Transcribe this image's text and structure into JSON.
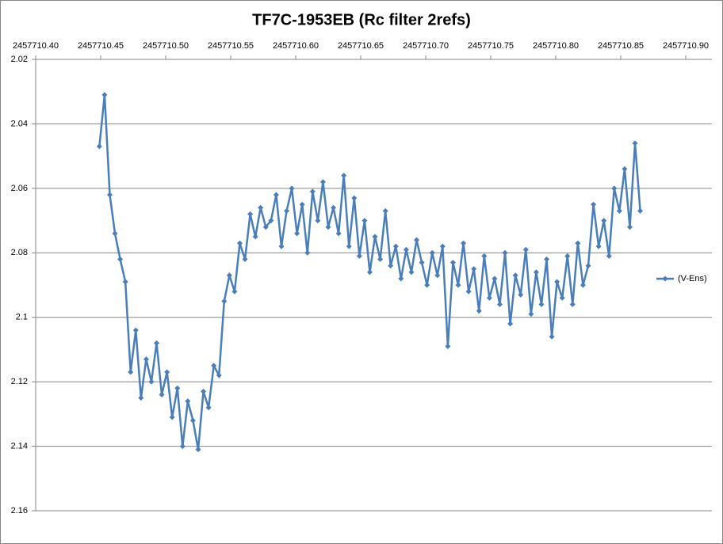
{
  "chart_data": {
    "type": "line",
    "title": "TF7C-1953EB (Rc filter 2refs)",
    "x": [
      2457710.449,
      2457710.453,
      2457710.457,
      2457710.461,
      2457710.465,
      2457710.469,
      2457710.473,
      2457710.477,
      2457710.481,
      2457710.485,
      2457710.489,
      2457710.493,
      2457710.497,
      2457710.501,
      2457710.505,
      2457710.509,
      2457710.513,
      2457710.517,
      2457710.521,
      2457710.525,
      2457710.529,
      2457710.533,
      2457710.537,
      2457710.541,
      2457710.545,
      2457710.549,
      2457710.553,
      2457710.557,
      2457710.561,
      2457710.565,
      2457710.569,
      2457710.573,
      2457710.577,
      2457710.581,
      2457710.585,
      2457710.589,
      2457710.593,
      2457710.597,
      2457710.601,
      2457710.605,
      2457710.609,
      2457710.613,
      2457710.617,
      2457710.621,
      2457710.625,
      2457710.629,
      2457710.633,
      2457710.637,
      2457710.641,
      2457710.645,
      2457710.649,
      2457710.653,
      2457710.657,
      2457710.661,
      2457710.665,
      2457710.669,
      2457710.673,
      2457710.677,
      2457710.681,
      2457710.685,
      2457710.689,
      2457710.693,
      2457710.697,
      2457710.701,
      2457710.705,
      2457710.709,
      2457710.713,
      2457710.717,
      2457710.721,
      2457710.725,
      2457710.729,
      2457710.733,
      2457710.737,
      2457710.741,
      2457710.745,
      2457710.749,
      2457710.753,
      2457710.757,
      2457710.761,
      2457710.765,
      2457710.769,
      2457710.773,
      2457710.777,
      2457710.781,
      2457710.785,
      2457710.789,
      2457710.793,
      2457710.797,
      2457710.801,
      2457710.805,
      2457710.809,
      2457710.813,
      2457710.817,
      2457710.821,
      2457710.825,
      2457710.829,
      2457710.833,
      2457710.837,
      2457710.841,
      2457710.845,
      2457710.849,
      2457710.853,
      2457710.857,
      2457710.861,
      2457710.865
    ],
    "series": [
      {
        "name": "(V-Ens)",
        "color": "#4a7ebb",
        "values": [
          2.047,
          2.031,
          2.062,
          2.074,
          2.082,
          2.089,
          2.117,
          2.104,
          2.125,
          2.113,
          2.12,
          2.108,
          2.124,
          2.117,
          2.131,
          2.122,
          2.14,
          2.126,
          2.132,
          2.141,
          2.123,
          2.128,
          2.115,
          2.118,
          2.095,
          2.087,
          2.092,
          2.077,
          2.082,
          2.068,
          2.075,
          2.066,
          2.072,
          2.07,
          2.062,
          2.078,
          2.067,
          2.06,
          2.074,
          2.065,
          2.08,
          2.061,
          2.07,
          2.058,
          2.072,
          2.066,
          2.074,
          2.056,
          2.078,
          2.063,
          2.081,
          2.07,
          2.086,
          2.075,
          2.082,
          2.067,
          2.084,
          2.078,
          2.088,
          2.079,
          2.086,
          2.076,
          2.083,
          2.09,
          2.08,
          2.087,
          2.078,
          2.109,
          2.083,
          2.09,
          2.077,
          2.092,
          2.085,
          2.098,
          2.081,
          2.094,
          2.088,
          2.096,
          2.08,
          2.102,
          2.087,
          2.093,
          2.079,
          2.099,
          2.086,
          2.096,
          2.082,
          2.106,
          2.089,
          2.094,
          2.081,
          2.096,
          2.077,
          2.09,
          2.084,
          2.065,
          2.078,
          2.07,
          2.081,
          2.06,
          2.067,
          2.054,
          2.072,
          2.046,
          2.067
        ]
      }
    ],
    "xlim": [
      2457710.4,
      2457710.9
    ],
    "xticks": [
      {
        "value": 2457710.4,
        "label": "2457710.40"
      },
      2457710.45,
      {
        "value": 2457710.5,
        "label": "2457710.50"
      },
      2457710.55,
      {
        "value": 2457710.6,
        "label": "2457710.60"
      },
      2457710.65,
      {
        "value": 2457710.7,
        "label": "2457710.70"
      },
      2457710.75,
      {
        "value": 2457710.8,
        "label": "2457710.80"
      },
      2457710.85,
      {
        "value": 2457710.9,
        "label": "2457710.90"
      }
    ],
    "ylim": [
      2.02,
      2.16
    ],
    "yticks": [
      2.02,
      2.04,
      2.06,
      2.08,
      2.1,
      2.12,
      2.14,
      2.16
    ],
    "y_reversed": true,
    "x_axis_position": "top",
    "grid": true,
    "legend": "right"
  }
}
